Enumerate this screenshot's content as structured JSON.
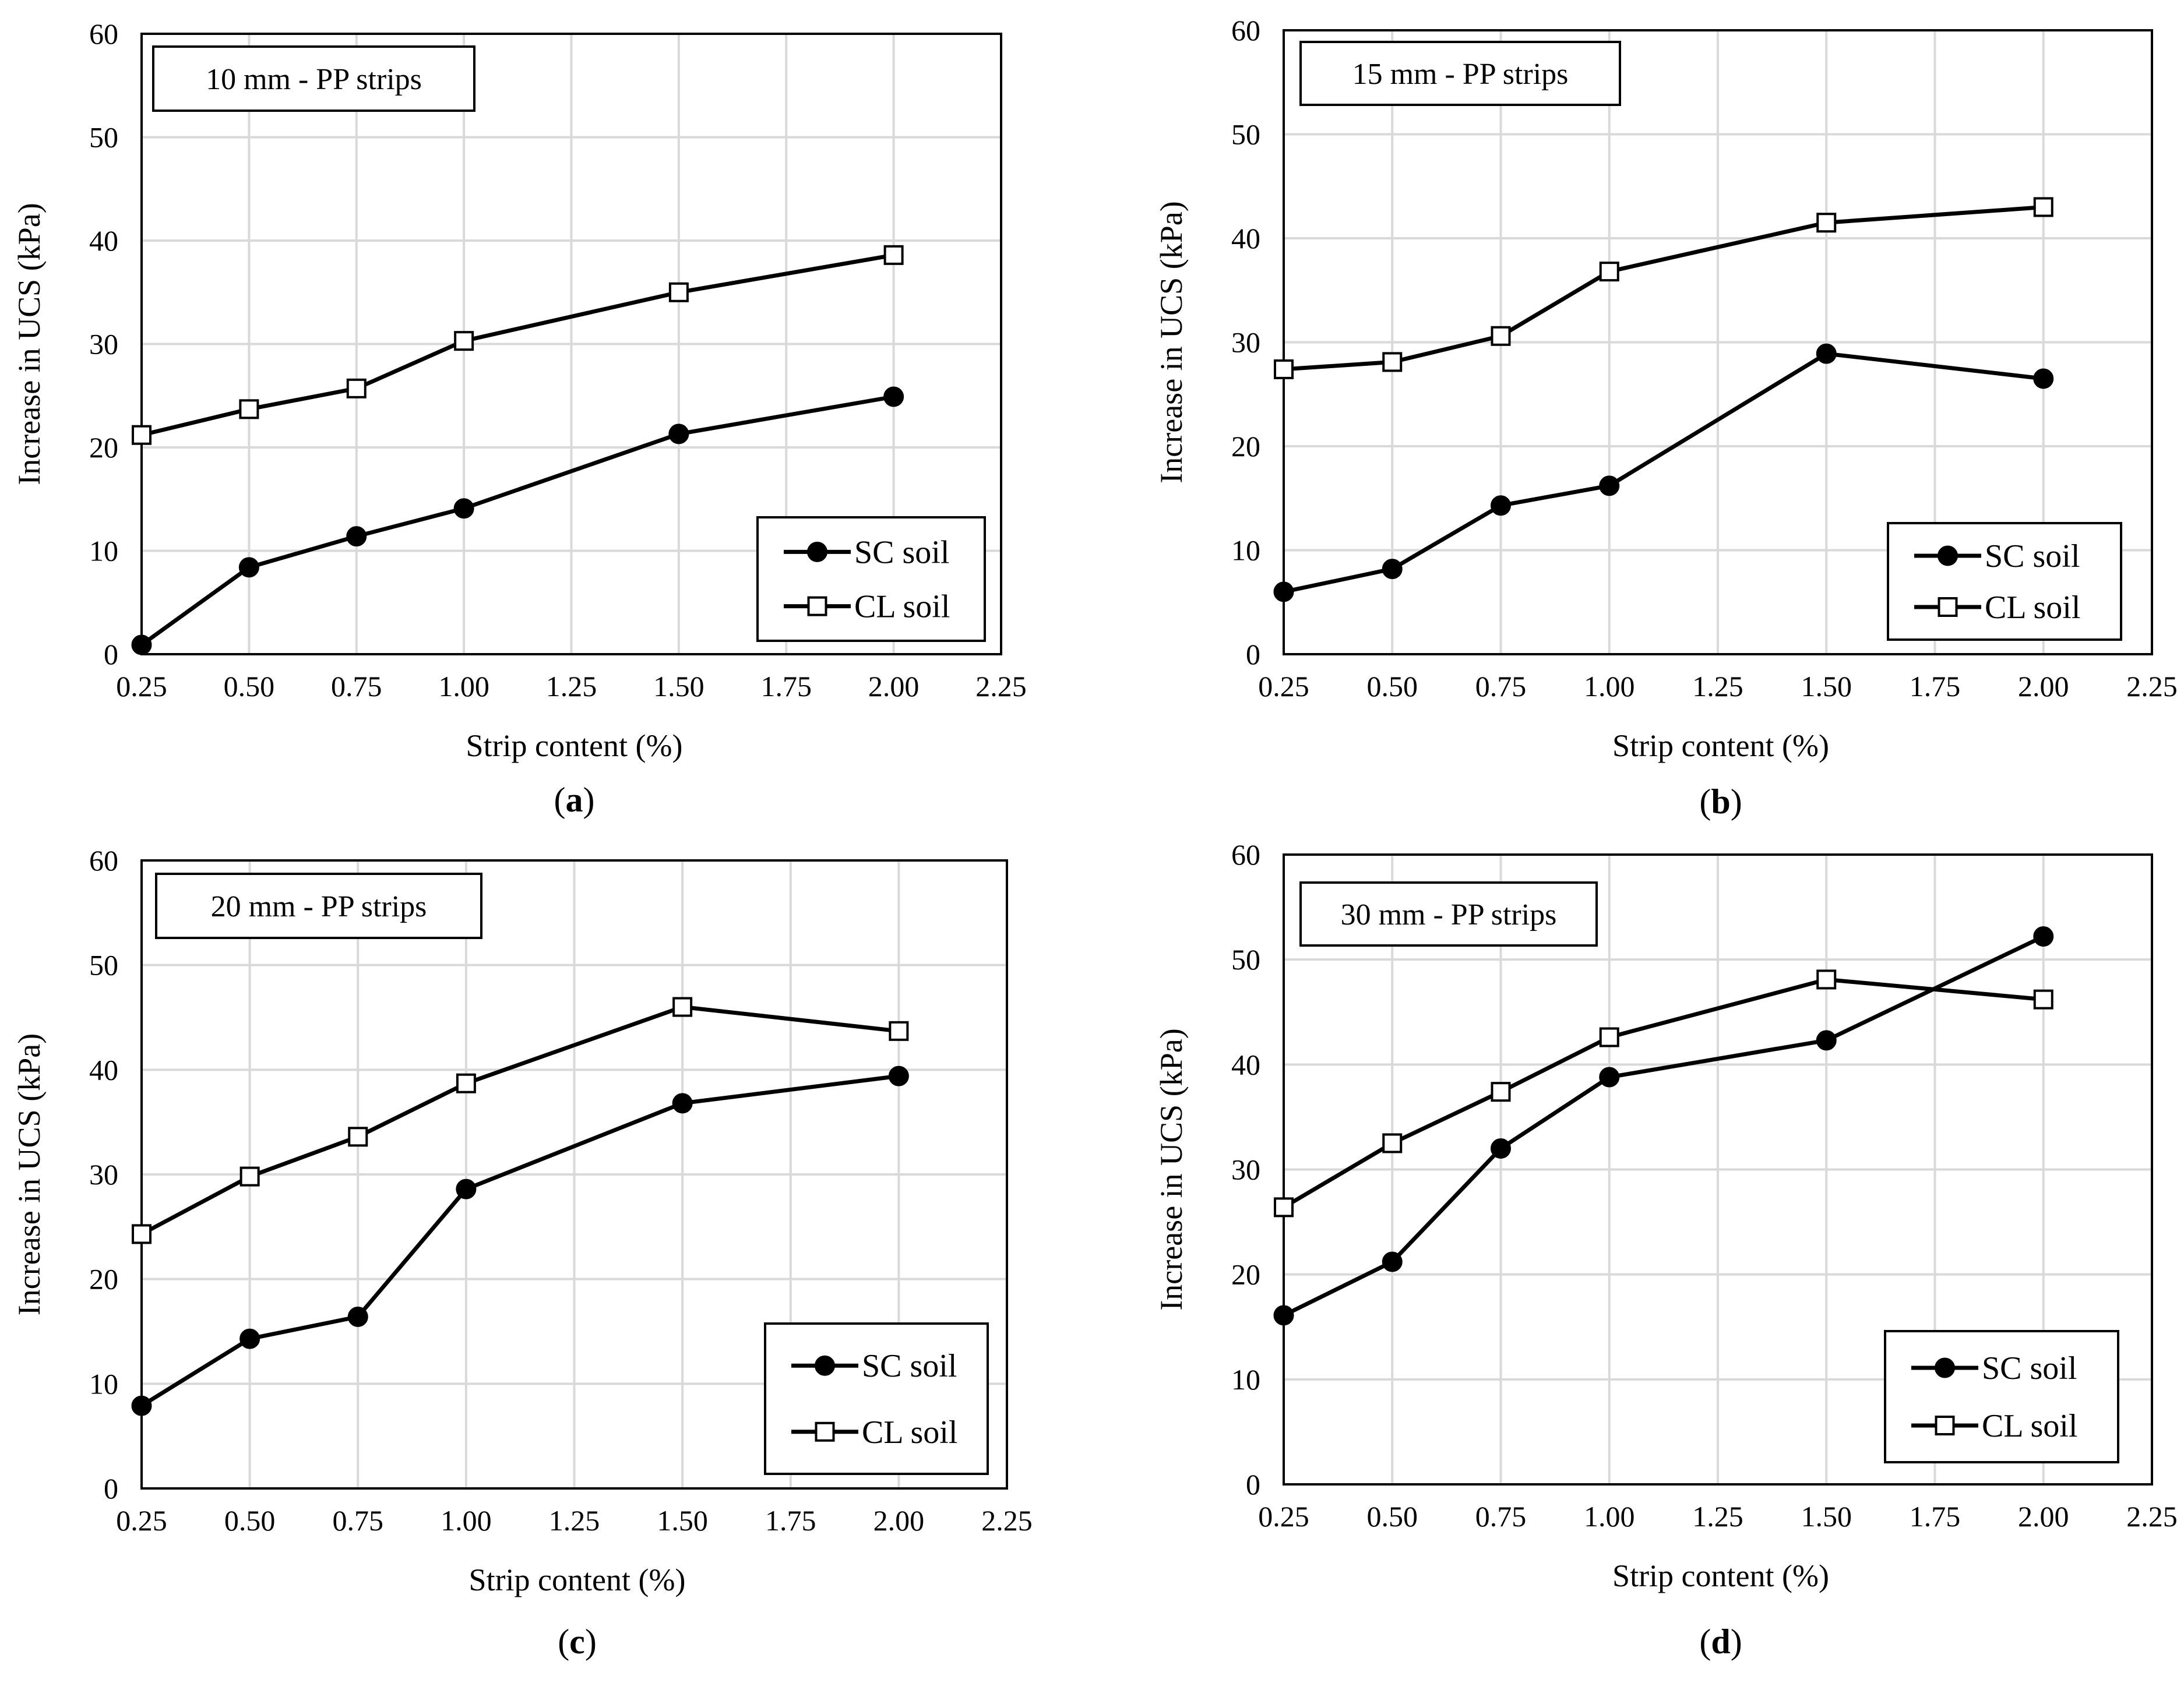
{
  "chart_data": [
    {
      "type": "line",
      "panel_label": "(a)",
      "title": "10 mm - PP strips",
      "xlabel": "Strip content (%)",
      "ylabel": "Increase in UCS (kPa)",
      "xlim": [
        0.25,
        2.25
      ],
      "ylim": [
        0,
        60
      ],
      "x_ticks": [
        "0.25",
        "0.50",
        "0.75",
        "1.00",
        "1.25",
        "1.50",
        "1.75",
        "2.00",
        "2.25"
      ],
      "y_ticks": [
        "0",
        "10",
        "20",
        "30",
        "40",
        "50",
        "60"
      ],
      "x": [
        0.25,
        0.5,
        0.75,
        1.0,
        1.5,
        2.0
      ],
      "series": [
        {
          "name": "SC soil",
          "marker": "filled-circle",
          "values": [
            0.9,
            8.4,
            11.4,
            14.1,
            21.3,
            24.9
          ]
        },
        {
          "name": "CL soil",
          "marker": "open-square",
          "values": [
            21.2,
            23.7,
            25.7,
            30.3,
            35.0,
            38.6
          ]
        }
      ],
      "legend_position": "bottom-right"
    },
    {
      "type": "line",
      "panel_label": "(b)",
      "title": "15 mm - PP strips",
      "xlabel": "Strip content (%)",
      "ylabel": "Increase in UCS (kPa)",
      "xlim": [
        0.25,
        2.25
      ],
      "ylim": [
        0,
        60
      ],
      "x_ticks": [
        "0.25",
        "0.50",
        "0.75",
        "1.00",
        "1.25",
        "1.50",
        "1.75",
        "2.00",
        "2.25"
      ],
      "y_ticks": [
        "0",
        "10",
        "20",
        "30",
        "40",
        "50",
        "60"
      ],
      "x": [
        0.25,
        0.5,
        0.75,
        1.0,
        1.5,
        2.0
      ],
      "series": [
        {
          "name": "SC soil",
          "marker": "filled-circle",
          "values": [
            6.0,
            8.2,
            14.3,
            16.2,
            28.9,
            26.5
          ]
        },
        {
          "name": "CL soil",
          "marker": "open-square",
          "values": [
            27.4,
            28.1,
            30.6,
            36.8,
            41.5,
            43.0
          ]
        }
      ],
      "legend_position": "bottom-right"
    },
    {
      "type": "line",
      "panel_label": "(c)",
      "title": "20 mm - PP strips",
      "xlabel": "Strip content (%)",
      "ylabel": "Increase in UCS (kPa)",
      "xlim": [
        0.25,
        2.25
      ],
      "ylim": [
        0,
        60
      ],
      "x_ticks": [
        "0.25",
        "0.50",
        "0.75",
        "1.00",
        "1.25",
        "1.50",
        "1.75",
        "2.00",
        "2.25"
      ],
      "y_ticks": [
        "0",
        "10",
        "20",
        "30",
        "40",
        "50",
        "60"
      ],
      "x": [
        0.25,
        0.5,
        0.75,
        1.0,
        1.5,
        2.0
      ],
      "series": [
        {
          "name": "SC soil",
          "marker": "filled-circle",
          "values": [
            7.9,
            14.3,
            16.4,
            28.6,
            36.8,
            39.4
          ]
        },
        {
          "name": "CL soil",
          "marker": "open-square",
          "values": [
            24.3,
            29.8,
            33.6,
            38.7,
            46.0,
            43.7
          ]
        }
      ],
      "legend_position": "bottom-right"
    },
    {
      "type": "line",
      "panel_label": "(d)",
      "title": "30 mm - PP strips",
      "xlabel": "Strip content (%)",
      "ylabel": "Increase in UCS (kPa)",
      "xlim": [
        0.25,
        2.25
      ],
      "ylim": [
        0,
        60
      ],
      "x_ticks": [
        "0.25",
        "0.50",
        "0.75",
        "1.00",
        "1.25",
        "1.50",
        "1.75",
        "2.00",
        "2.25"
      ],
      "y_ticks": [
        "0",
        "10",
        "20",
        "30",
        "40",
        "50",
        "60"
      ],
      "x": [
        0.25,
        0.5,
        0.75,
        1.0,
        1.5,
        2.0
      ],
      "series": [
        {
          "name": "SC soil",
          "marker": "filled-circle",
          "values": [
            16.1,
            21.2,
            32.0,
            38.8,
            42.3,
            52.2
          ]
        },
        {
          "name": "CL soil",
          "marker": "open-square",
          "values": [
            26.4,
            32.5,
            37.4,
            42.6,
            48.1,
            46.2
          ]
        }
      ],
      "legend_position": "bottom-right"
    }
  ]
}
